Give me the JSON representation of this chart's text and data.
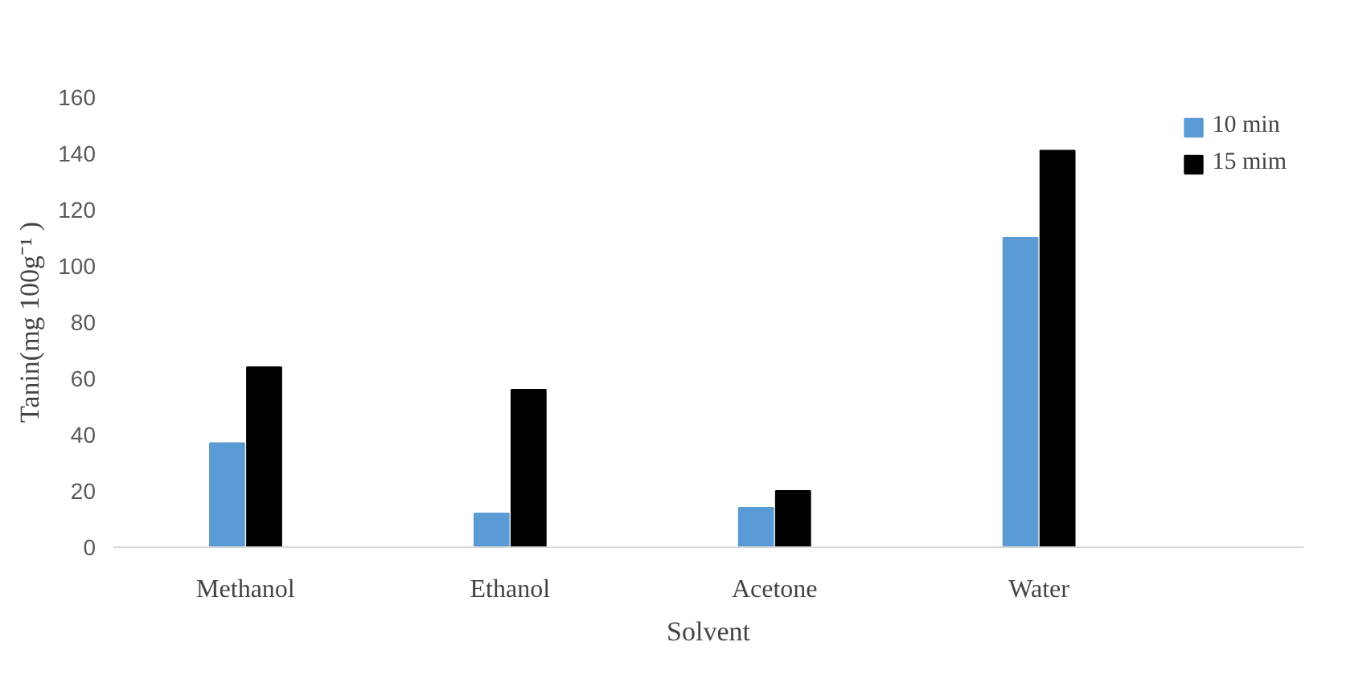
{
  "chart_data": {
    "type": "bar",
    "categories": [
      "Methanol",
      "Ethanol",
      "Acetone",
      "Water"
    ],
    "series": [
      {
        "name": "10 min",
        "color": "#5b9bd5",
        "values": [
          37,
          12,
          14,
          110
        ]
      },
      {
        "name": "15 mim",
        "color": "#000000",
        "values": [
          64,
          56,
          20,
          141
        ]
      }
    ],
    "xlabel": "Solvent",
    "ylabel": "Tanin(mg 100g⁻¹ )",
    "ylim": [
      0,
      160
    ],
    "yticks": [
      0,
      20,
      40,
      60,
      80,
      100,
      120,
      140,
      160
    ],
    "grid": false,
    "legend": "top right"
  }
}
